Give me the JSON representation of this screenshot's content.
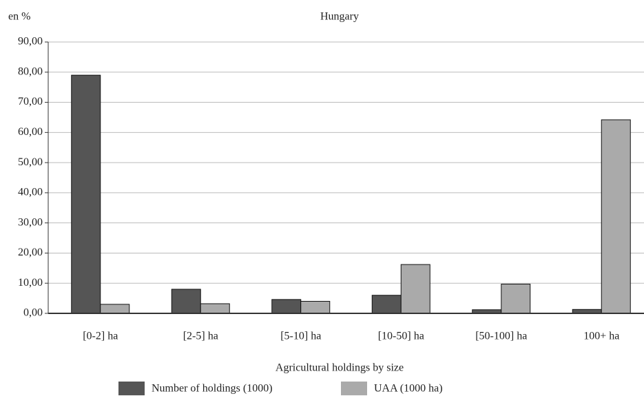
{
  "chart_data": {
    "type": "bar",
    "title": "Hungary",
    "y_label": "en %",
    "x_label": "Agricultural holdings by size",
    "categories": [
      "[0-2] ha",
      "[2-5] ha",
      "[5-10] ha",
      "[10-50] ha",
      "[50-100] ha",
      "100+ ha"
    ],
    "series": [
      {
        "name": "Number of holdings (1000)",
        "color": "#555555",
        "values": [
          79,
          8,
          4.6,
          6,
          1.2,
          1.3
        ]
      },
      {
        "name": "UAA (1000 ha)",
        "color": "#aaaaaa",
        "values": [
          3,
          3.2,
          4,
          16.2,
          9.7,
          64.2
        ]
      }
    ],
    "ylim": [
      0,
      90
    ],
    "yticks": [
      {
        "value": 0,
        "label": "0,00"
      },
      {
        "value": 10,
        "label": "10,00"
      },
      {
        "value": 20,
        "label": "20,00"
      },
      {
        "value": 30,
        "label": "30,00"
      },
      {
        "value": 40,
        "label": "40,00"
      },
      {
        "value": 50,
        "label": "50,00"
      },
      {
        "value": 60,
        "label": "60,00"
      },
      {
        "value": 70,
        "label": "70,00"
      },
      {
        "value": 80,
        "label": "80,00"
      },
      {
        "value": 90,
        "label": "90,00"
      }
    ],
    "grid": true
  }
}
